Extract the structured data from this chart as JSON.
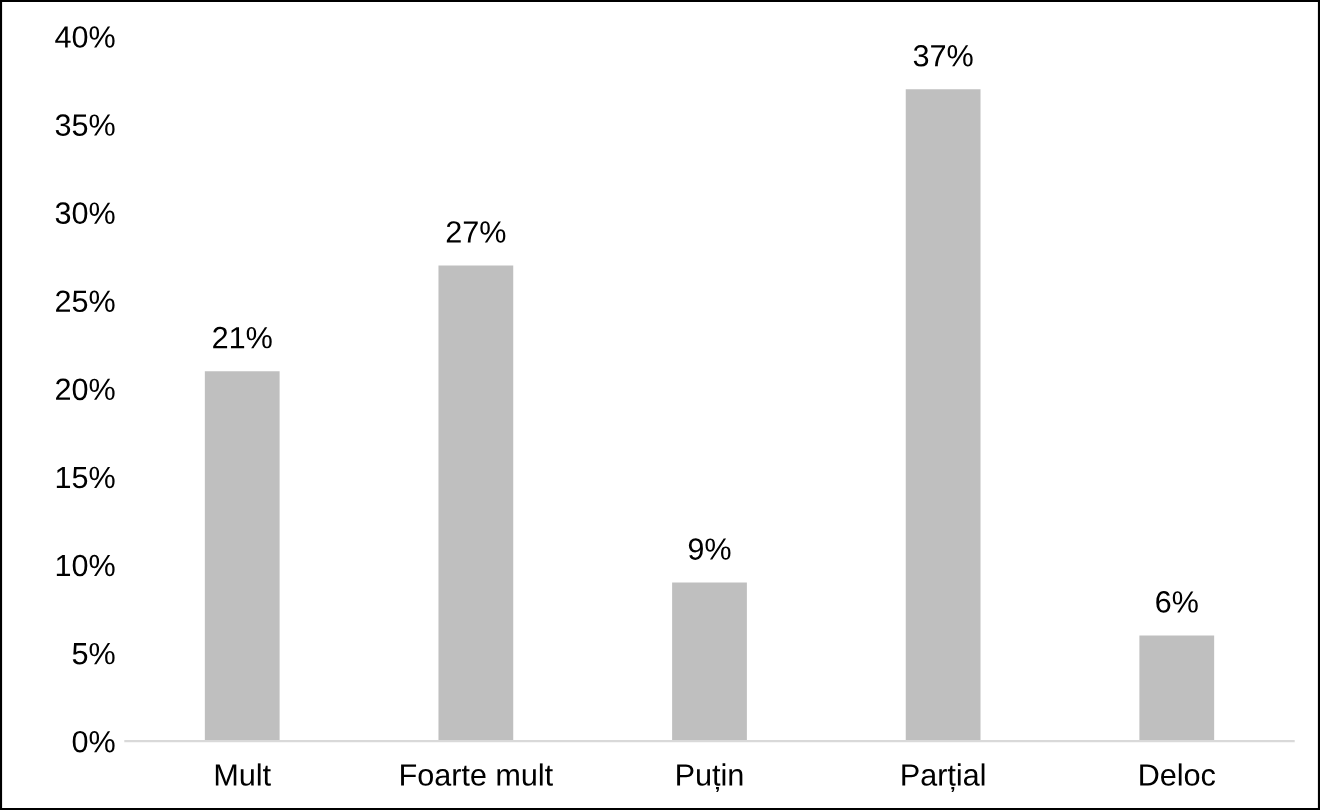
{
  "chart_data": {
    "type": "bar",
    "categories": [
      "Mult",
      "Foarte mult",
      "Puțin",
      "Parțial",
      "Deloc"
    ],
    "values": [
      21,
      27,
      9,
      37,
      6
    ],
    "color": "#bfbfbf",
    "value_labels": [
      "21%",
      "27%",
      "9%",
      "37%",
      "6%"
    ],
    "ylim": [
      0,
      40
    ],
    "yticks": [
      {
        "value": 0,
        "label": "0%"
      },
      {
        "value": 5,
        "label": "5%"
      },
      {
        "value": 10,
        "label": "10%"
      },
      {
        "value": 15,
        "label": "15%"
      },
      {
        "value": 20,
        "label": "20%"
      },
      {
        "value": 25,
        "label": "25%"
      },
      {
        "value": 30,
        "label": "30%"
      },
      {
        "value": 35,
        "label": "35%"
      },
      {
        "value": 40,
        "label": "40%"
      }
    ],
    "grid": false,
    "legend": false
  }
}
